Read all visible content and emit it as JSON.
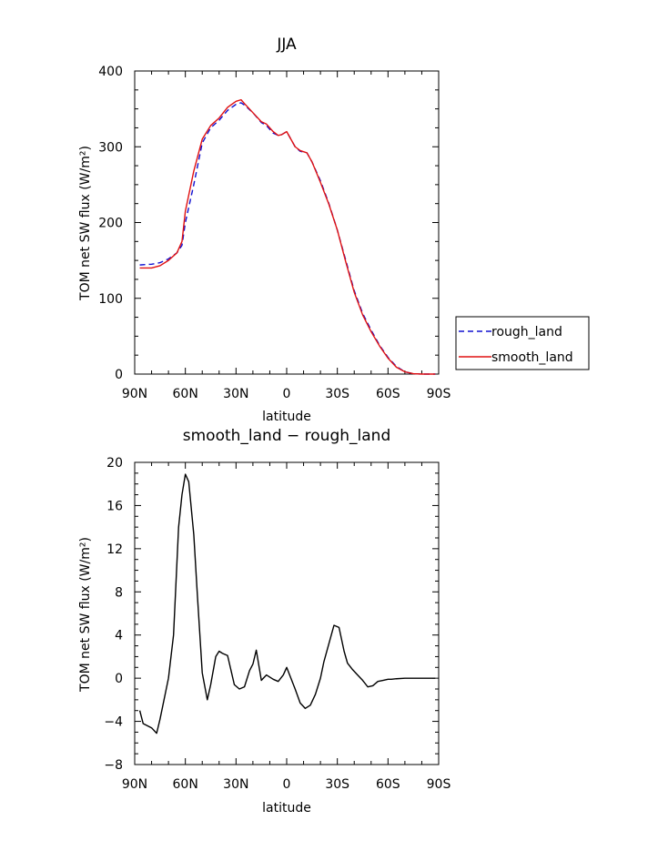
{
  "chart_data": [
    {
      "type": "line",
      "title": "JJA",
      "xlabel": "latitude",
      "ylabel": "TOM net SW flux (W/m²)",
      "xticks": [
        "90N",
        "60N",
        "30N",
        "0",
        "30S",
        "60S",
        "90S"
      ],
      "yticks": [
        "0",
        "100",
        "200",
        "300",
        "400"
      ],
      "xlim": [
        90,
        -90
      ],
      "ylim": [
        0,
        400
      ],
      "grid": false,
      "legend_position": "outside-right",
      "series": [
        {
          "name": "rough_land",
          "color": "#1010d0",
          "style": "dashed",
          "x": [
            87,
            80,
            75,
            70,
            65,
            62,
            60,
            55,
            50,
            45,
            40,
            35,
            30,
            27,
            25,
            20,
            15,
            12,
            8,
            5,
            3,
            0,
            -2,
            -5,
            -8,
            -12,
            -15,
            -20,
            -25,
            -30,
            -35,
            -40,
            -45,
            -50,
            -55,
            -60,
            -65,
            -70,
            -75,
            -80,
            -85,
            -88
          ],
          "y": [
            144,
            145,
            147,
            152,
            160,
            170,
            200,
            250,
            305,
            325,
            335,
            348,
            356,
            358,
            355,
            345,
            332,
            328,
            318,
            315,
            316,
            320,
            312,
            300,
            294,
            292,
            280,
            255,
            225,
            190,
            150,
            110,
            80,
            58,
            38,
            22,
            10,
            3,
            0.5,
            0,
            0,
            0
          ]
        },
        {
          "name": "smooth_land",
          "color": "#e01010",
          "style": "solid",
          "x": [
            87,
            80,
            75,
            70,
            65,
            62,
            60,
            55,
            50,
            45,
            40,
            35,
            30,
            27,
            25,
            20,
            15,
            12,
            8,
            5,
            3,
            0,
            -2,
            -5,
            -8,
            -12,
            -15,
            -20,
            -25,
            -30,
            -35,
            -40,
            -45,
            -50,
            -55,
            -60,
            -65,
            -70,
            -75,
            -80,
            -85,
            -88
          ],
          "y": [
            140,
            140,
            143,
            150,
            160,
            175,
            215,
            268,
            310,
            328,
            338,
            352,
            360,
            362,
            357,
            345,
            333,
            330,
            320,
            315,
            316,
            320,
            312,
            300,
            295,
            292,
            280,
            253,
            224,
            190,
            148,
            108,
            78,
            56,
            37,
            21,
            9,
            3,
            0.5,
            0,
            0,
            0
          ]
        }
      ]
    },
    {
      "type": "line",
      "title": "smooth_land − rough_land",
      "xlabel": "latitude",
      "ylabel": "TOM net SW flux (W/m²)",
      "xticks": [
        "90N",
        "60N",
        "30N",
        "0",
        "30S",
        "60S",
        "90S"
      ],
      "yticks": [
        "−8",
        "−4",
        "0",
        "4",
        "8",
        "12",
        "16",
        "20"
      ],
      "xlim": [
        90,
        -90
      ],
      "ylim": [
        -8,
        20
      ],
      "grid": false,
      "series": [
        {
          "color": "#000000",
          "style": "solid",
          "x": [
            87,
            85,
            80,
            77,
            75,
            70,
            67,
            64,
            62,
            60,
            58,
            55,
            53,
            50,
            47,
            45,
            42,
            40,
            38,
            35,
            31,
            28,
            25,
            22,
            20,
            18,
            15,
            12,
            10,
            8,
            5,
            2,
            0,
            -2,
            -5,
            -8,
            -11,
            -14,
            -17,
            -20,
            -22,
            -25,
            -28,
            -31,
            -34,
            -36,
            -39,
            -42,
            -45,
            -48,
            -51,
            -54,
            -57,
            -60,
            -62,
            -65,
            -70,
            -75,
            -80,
            -85,
            -88
          ],
          "y": [
            -3,
            -4.2,
            -4.6,
            -5.1,
            -3.8,
            0,
            4,
            14,
            17,
            18.9,
            18.2,
            13.3,
            8,
            0.5,
            -2,
            -0.6,
            2,
            2.5,
            2.3,
            2.1,
            -0.6,
            -1,
            -0.8,
            0.7,
            1.3,
            2.6,
            -0.2,
            0.3,
            0.1,
            -0.1,
            -0.3,
            0.3,
            1,
            0.2,
            -1,
            -2.3,
            -2.8,
            -2.5,
            -1.5,
            0,
            1.5,
            3.2,
            4.9,
            4.7,
            2.5,
            1.4,
            0.8,
            0.3,
            -0.2,
            -0.8,
            -0.7,
            -0.3,
            -0.2,
            -0.1,
            -0.1,
            -0.05,
            0,
            0,
            0,
            0,
            0
          ]
        }
      ]
    }
  ]
}
